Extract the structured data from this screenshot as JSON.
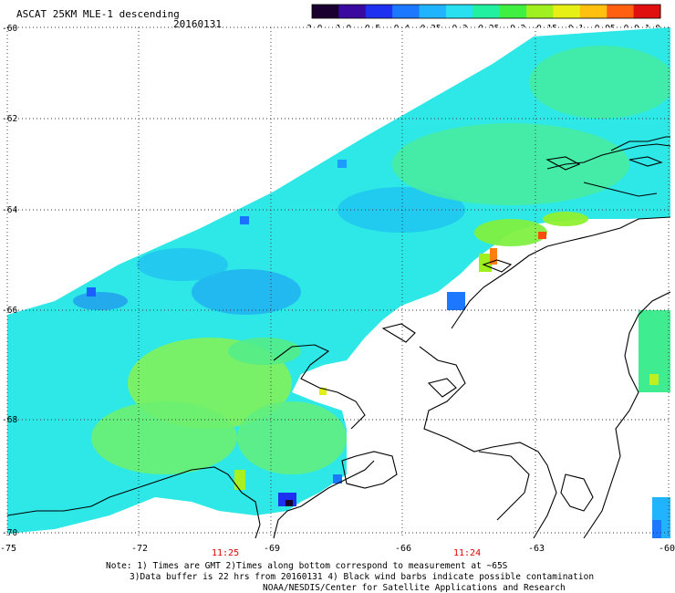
{
  "header": {
    "title": "ASCAT 25KM MLE-1 descending",
    "date": "20160131"
  },
  "colorbar": {
    "labels": [
      "-3.0",
      "-1.0",
      "-0.5",
      "-0.4",
      "-0.35",
      "-0.3",
      "-0.25",
      "-0.2",
      "-0.15",
      "-0.1",
      "-0.05",
      "0.0",
      "1.0"
    ],
    "colors": [
      "#1a0030",
      "#3a0aa0",
      "#1e30f0",
      "#1c78ff",
      "#20b4ff",
      "#28e0f0",
      "#20f0a0",
      "#40f040",
      "#a0f020",
      "#e6f014",
      "#ffc010",
      "#ff6010",
      "#e01010"
    ]
  },
  "axes": {
    "lat_labels": [
      "-60",
      "-62",
      "-64",
      "-66",
      "-68",
      "-70"
    ],
    "lon_labels": [
      "-75",
      "-72",
      "-69",
      "-66",
      "-63",
      "-60"
    ],
    "time_labels": [
      "11:25",
      "11:24"
    ],
    "time_color": "#e00000"
  },
  "notes": {
    "line1": "Note: 1) Times are GMT 2)Times along bottom correspond to measurement at ~65S",
    "line2": "3)Data buffer is 22 hrs from 20160131 4) Black wind barbs indicate possible contamination",
    "line3": "NOAA/NESDIS/Center for Satellite Applications and Research"
  }
}
